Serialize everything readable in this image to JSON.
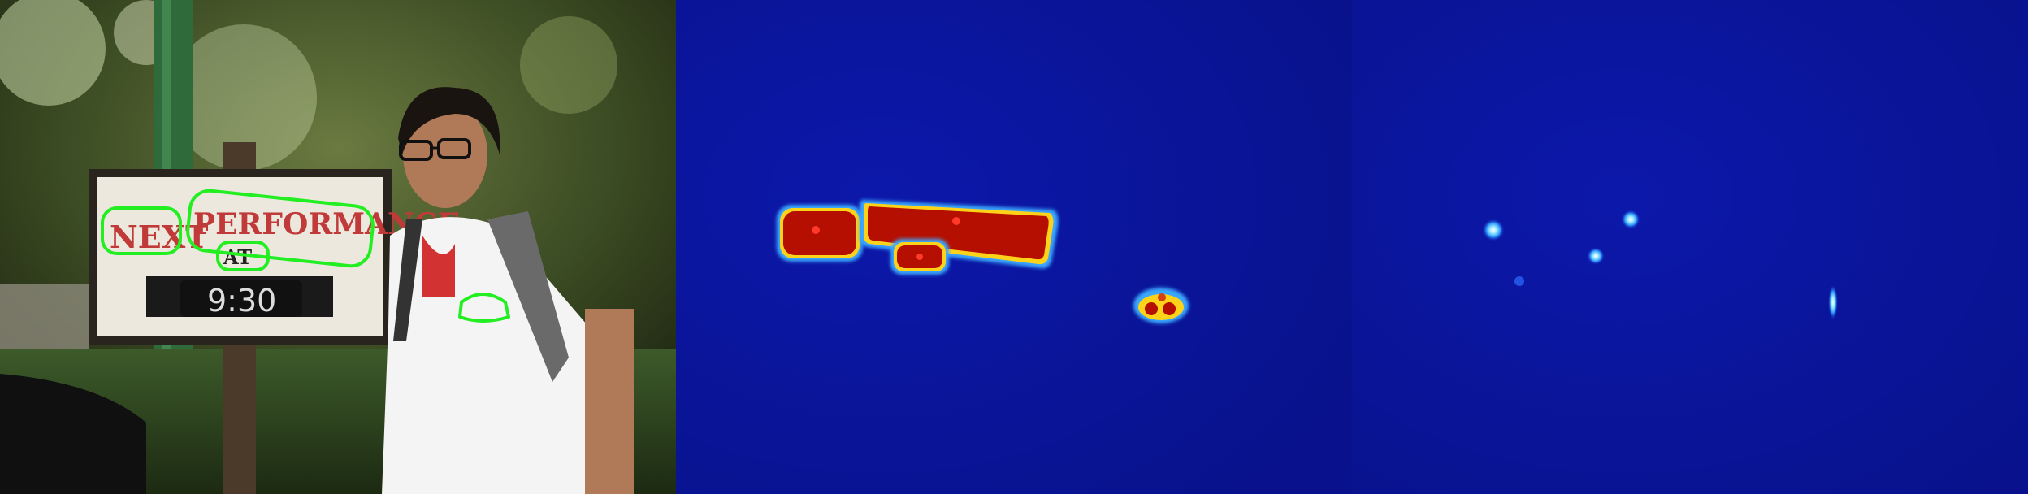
{
  "photo": {
    "sign": {
      "line1_word1": "NEXT",
      "line1_word2": "PERFORMANCE",
      "line2": "AT",
      "time": "9:30"
    },
    "shirt_logo": "",
    "detection_color": "#22ee22"
  },
  "heatmaps": {
    "background_color": "#0a14b4",
    "hot_color": "#b40f00",
    "edge_color": "#23c8ff"
  }
}
